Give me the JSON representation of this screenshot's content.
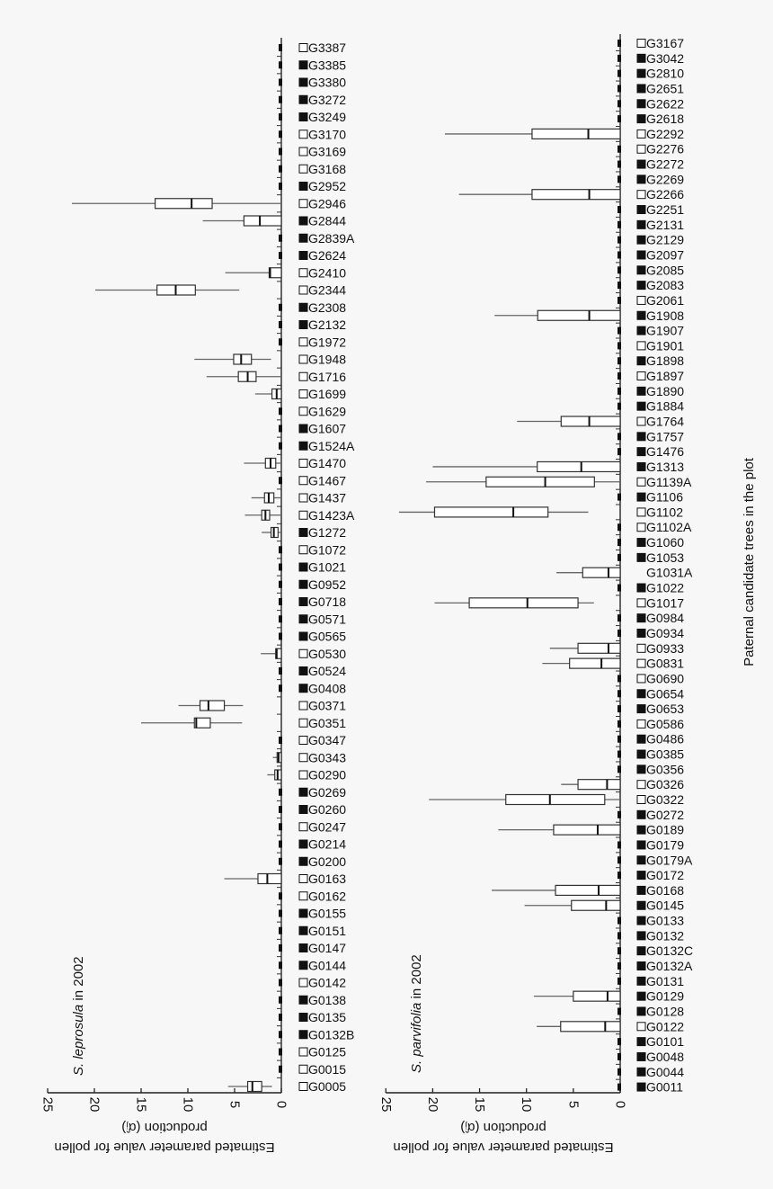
{
  "y_axis_label": "Paternal candidate trees in the plot",
  "chart_data": [
    {
      "type": "box",
      "orientation": "horizontal",
      "title": {
        "species": "S. leprosula",
        "suffix": " in 2002"
      },
      "xlabel_lines": [
        "Estimated parameter value for pollen",
        "production (α̂ⱼ)"
      ],
      "xlim": [
        0,
        25
      ],
      "x_reversed": true,
      "xticks": [
        "0",
        "5",
        "10",
        "15",
        "20",
        "25"
      ],
      "box_fields": [
        "whisker_low",
        "q1",
        "median",
        "q3",
        "whisker_high"
      ],
      "trees": [
        {
          "id": "G3387",
          "marker": "open"
        },
        {
          "id": "G3385",
          "marker": "filled"
        },
        {
          "id": "G3380",
          "marker": "filled"
        },
        {
          "id": "G3272",
          "marker": "filled"
        },
        {
          "id": "G3249",
          "marker": "filled"
        },
        {
          "id": "G3170",
          "marker": "open"
        },
        {
          "id": "G3169",
          "marker": "open"
        },
        {
          "id": "G3168",
          "marker": "open"
        },
        {
          "id": "G2952",
          "marker": "filled"
        },
        {
          "id": "G2946",
          "marker": "open"
        },
        {
          "id": "G2844",
          "marker": "filled"
        },
        {
          "id": "G2839A",
          "marker": "filled"
        },
        {
          "id": "G2624",
          "marker": "filled"
        },
        {
          "id": "G2410",
          "marker": "open"
        },
        {
          "id": "G2344",
          "marker": "open"
        },
        {
          "id": "G2308",
          "marker": "filled"
        },
        {
          "id": "G2132",
          "marker": "filled"
        },
        {
          "id": "G1972",
          "marker": "open"
        },
        {
          "id": "G1948",
          "marker": "open"
        },
        {
          "id": "G1716",
          "marker": "open"
        },
        {
          "id": "G1699",
          "marker": "open"
        },
        {
          "id": "G1629",
          "marker": "open"
        },
        {
          "id": "G1607",
          "marker": "filled"
        },
        {
          "id": "G1524A",
          "marker": "filled"
        },
        {
          "id": "G1470",
          "marker": "open"
        },
        {
          "id": "G1467",
          "marker": "open"
        },
        {
          "id": "G1437",
          "marker": "open"
        },
        {
          "id": "G1423A",
          "marker": "open"
        },
        {
          "id": "G1272",
          "marker": "filled"
        },
        {
          "id": "G1072",
          "marker": "open"
        },
        {
          "id": "G1021",
          "marker": "filled"
        },
        {
          "id": "G0952",
          "marker": "filled"
        },
        {
          "id": "G0718",
          "marker": "filled"
        },
        {
          "id": "G0571",
          "marker": "filled"
        },
        {
          "id": "G0565",
          "marker": "filled"
        },
        {
          "id": "G0530",
          "marker": "open"
        },
        {
          "id": "G0524",
          "marker": "filled"
        },
        {
          "id": "G0408",
          "marker": "filled"
        },
        {
          "id": "G0371",
          "marker": "open"
        },
        {
          "id": "G0351",
          "marker": "open"
        },
        {
          "id": "G0347",
          "marker": "open"
        },
        {
          "id": "G0343",
          "marker": "open"
        },
        {
          "id": "G0290",
          "marker": "open"
        },
        {
          "id": "G0269",
          "marker": "filled"
        },
        {
          "id": "G0260",
          "marker": "filled"
        },
        {
          "id": "G0247",
          "marker": "open"
        },
        {
          "id": "G0214",
          "marker": "filled"
        },
        {
          "id": "G0200",
          "marker": "filled"
        },
        {
          "id": "G0163",
          "marker": "open"
        },
        {
          "id": "G0162",
          "marker": "open"
        },
        {
          "id": "G0155",
          "marker": "filled"
        },
        {
          "id": "G0151",
          "marker": "filled"
        },
        {
          "id": "G0147",
          "marker": "filled"
        },
        {
          "id": "G0144",
          "marker": "filled"
        },
        {
          "id": "G0142",
          "marker": "open"
        },
        {
          "id": "G0138",
          "marker": "filled"
        },
        {
          "id": "G0135",
          "marker": "filled"
        },
        {
          "id": "G0132B",
          "marker": "filled"
        },
        {
          "id": "G0125",
          "marker": "open"
        },
        {
          "id": "G0015",
          "marker": "open"
        },
        {
          "id": "G0005",
          "marker": "open"
        }
      ],
      "boxes": {
        "G2946": [
          0,
          7.4,
          9.6,
          13.5,
          22.4
        ],
        "G2844": [
          0,
          0,
          2.3,
          4.0,
          8.4
        ],
        "G2410": [
          0,
          0,
          1.2,
          1.3,
          6.0
        ],
        "G2344": [
          4.5,
          9.2,
          11.3,
          13.3,
          19.9
        ],
        "G1948": [
          1.1,
          3.2,
          4.3,
          5.1,
          9.3
        ],
        "G1716": [
          0,
          2.7,
          3.6,
          4.6,
          8.0
        ],
        "G1699": [
          0,
          0,
          0.5,
          1.0,
          2.8
        ],
        "G1470": [
          0,
          0.6,
          1.15,
          1.7,
          4.0
        ],
        "G1437": [
          0,
          0.8,
          1.35,
          1.8,
          3.2
        ],
        "G1423A": [
          0,
          1.25,
          1.7,
          2.1,
          3.9
        ],
        "G1272": [
          0,
          0.35,
          0.8,
          1.1,
          2.1
        ],
        "G0530": [
          0,
          0,
          0.5,
          0.6,
          2.2
        ],
        "G0371": [
          4.1,
          6.1,
          7.8,
          8.7,
          11.0
        ],
        "G0351": [
          4.2,
          7.6,
          9.1,
          9.3,
          15.0
        ],
        "G0343": [
          0,
          0,
          0.3,
          0.45,
          0.9
        ],
        "G0290": [
          0,
          0,
          0.4,
          0.7,
          1.5
        ],
        "G0163": [
          0,
          0,
          1.5,
          2.5,
          6.1
        ],
        "G0005": [
          1.0,
          2.1,
          3.1,
          3.6,
          5.7
        ]
      }
    },
    {
      "type": "box",
      "orientation": "horizontal",
      "title": {
        "species": "S. parvifolia",
        "suffix": " in 2002"
      },
      "xlabel_lines": [
        "Estimated parameter value for pollen",
        "production (α̂ⱼ)"
      ],
      "xlim": [
        0,
        25
      ],
      "x_reversed": true,
      "xticks": [
        "0",
        "5",
        "10",
        "15",
        "20",
        "25"
      ],
      "box_fields": [
        "whisker_low",
        "q1",
        "median",
        "q3",
        "whisker_high"
      ],
      "trees": [
        {
          "id": "G3167",
          "marker": "open"
        },
        {
          "id": "G3042",
          "marker": "filled"
        },
        {
          "id": "G2810",
          "marker": "filled"
        },
        {
          "id": "G2651",
          "marker": "filled"
        },
        {
          "id": "G2622",
          "marker": "filled"
        },
        {
          "id": "G2618",
          "marker": "filled"
        },
        {
          "id": "G2292",
          "marker": "open"
        },
        {
          "id": "G2276",
          "marker": "open"
        },
        {
          "id": "G2272",
          "marker": "filled"
        },
        {
          "id": "G2269",
          "marker": "filled"
        },
        {
          "id": "G2266",
          "marker": "open"
        },
        {
          "id": "G2251",
          "marker": "filled"
        },
        {
          "id": "G2131",
          "marker": "filled"
        },
        {
          "id": "G2129",
          "marker": "filled"
        },
        {
          "id": "G2097",
          "marker": "filled"
        },
        {
          "id": "G2085",
          "marker": "filled"
        },
        {
          "id": "G2083",
          "marker": "filled"
        },
        {
          "id": "G2061",
          "marker": "open"
        },
        {
          "id": "G1908",
          "marker": "filled"
        },
        {
          "id": "G1907",
          "marker": "filled"
        },
        {
          "id": "G1901",
          "marker": "open"
        },
        {
          "id": "G1898",
          "marker": "filled"
        },
        {
          "id": "G1897",
          "marker": "open"
        },
        {
          "id": "G1890",
          "marker": "filled"
        },
        {
          "id": "G1884",
          "marker": "filled"
        },
        {
          "id": "G1764",
          "marker": "open"
        },
        {
          "id": "G1757",
          "marker": "filled"
        },
        {
          "id": "G1476",
          "marker": "filled"
        },
        {
          "id": "G1313",
          "marker": "filled"
        },
        {
          "id": "G1139A",
          "marker": "open"
        },
        {
          "id": "G1106",
          "marker": "filled"
        },
        {
          "id": "G1102",
          "marker": "open"
        },
        {
          "id": "G1102A",
          "marker": "open"
        },
        {
          "id": "G1060",
          "marker": "filled"
        },
        {
          "id": "G1053",
          "marker": "filled"
        },
        {
          "id": "G1031A",
          "marker": "none"
        },
        {
          "id": "G1022",
          "marker": "filled"
        },
        {
          "id": "G1017",
          "marker": "open"
        },
        {
          "id": "G0984",
          "marker": "filled"
        },
        {
          "id": "G0934",
          "marker": "filled"
        },
        {
          "id": "G0933",
          "marker": "open"
        },
        {
          "id": "G0831",
          "marker": "open"
        },
        {
          "id": "G0690",
          "marker": "open"
        },
        {
          "id": "G0654",
          "marker": "filled"
        },
        {
          "id": "G0653",
          "marker": "filled"
        },
        {
          "id": "G0586",
          "marker": "open"
        },
        {
          "id": "G0486",
          "marker": "filled"
        },
        {
          "id": "G0385",
          "marker": "filled"
        },
        {
          "id": "G0356",
          "marker": "filled"
        },
        {
          "id": "G0326",
          "marker": "open"
        },
        {
          "id": "G0322",
          "marker": "open"
        },
        {
          "id": "G0272",
          "marker": "filled"
        },
        {
          "id": "G0189",
          "marker": "filled"
        },
        {
          "id": "G0179",
          "marker": "filled"
        },
        {
          "id": "G0179A",
          "marker": "filled"
        },
        {
          "id": "G0172",
          "marker": "filled"
        },
        {
          "id": "G0168",
          "marker": "filled"
        },
        {
          "id": "G0145",
          "marker": "filled"
        },
        {
          "id": "G0133",
          "marker": "filled"
        },
        {
          "id": "G0132",
          "marker": "filled"
        },
        {
          "id": "G0132C",
          "marker": "filled"
        },
        {
          "id": "G0132A",
          "marker": "filled"
        },
        {
          "id": "G0131",
          "marker": "filled"
        },
        {
          "id": "G0129",
          "marker": "filled"
        },
        {
          "id": "G0128",
          "marker": "filled"
        },
        {
          "id": "G0122",
          "marker": "open"
        },
        {
          "id": "G0101",
          "marker": "filled"
        },
        {
          "id": "G0048",
          "marker": "filled"
        },
        {
          "id": "G0044",
          "marker": "filled"
        },
        {
          "id": "G0011",
          "marker": "filled"
        }
      ],
      "boxes": {
        "G2292": [
          0,
          0,
          3.4,
          9.4,
          18.7
        ],
        "G2266": [
          0,
          0,
          3.3,
          9.4,
          17.2
        ],
        "G1908": [
          0,
          0,
          3.3,
          8.8,
          13.4
        ],
        "G1764": [
          0,
          0,
          3.3,
          6.3,
          11.0
        ],
        "G1313": [
          0,
          0,
          4.15,
          8.85,
          20.0
        ],
        "G1139A": [
          0,
          2.75,
          8.0,
          14.3,
          20.7
        ],
        "G1102": [
          3.4,
          7.7,
          11.4,
          19.8,
          23.6
        ],
        "G1031A": [
          0,
          0,
          1.25,
          4.0,
          6.8
        ],
        "G1017": [
          2.8,
          4.5,
          9.9,
          16.1,
          19.8
        ],
        "G0933": [
          0,
          0,
          1.25,
          4.5,
          7.5
        ],
        "G0831": [
          0,
          0,
          2.0,
          5.4,
          8.3
        ],
        "G0326": [
          0,
          0,
          1.4,
          4.5,
          6.3
        ],
        "G0322": [
          0,
          1.65,
          7.5,
          12.2,
          20.4
        ],
        "G0189": [
          0,
          0,
          2.4,
          7.1,
          13.0
        ],
        "G0168": [
          0,
          0,
          2.3,
          6.9,
          13.7
        ],
        "G0145": [
          0,
          0,
          1.5,
          5.2,
          10.2
        ],
        "G0129": [
          0,
          0,
          1.35,
          5.0,
          9.2
        ],
        "G0122": [
          0,
          0,
          1.6,
          6.35,
          8.9
        ]
      }
    }
  ]
}
